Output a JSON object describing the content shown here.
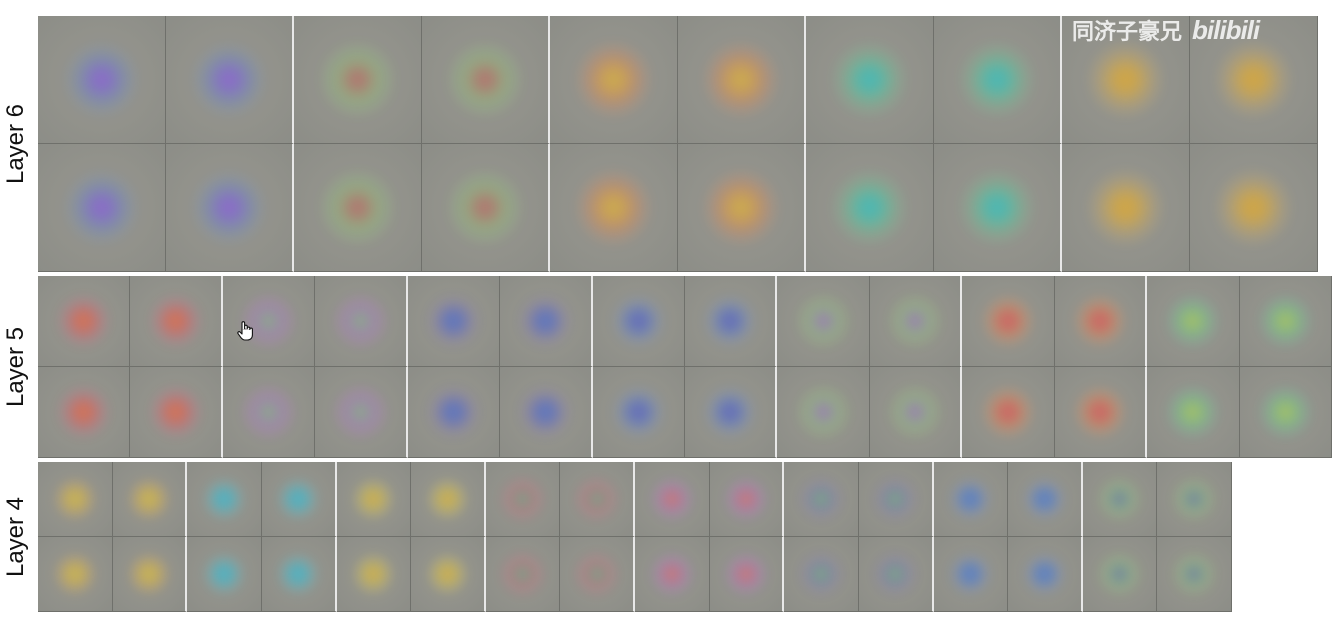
{
  "layers": [
    {
      "label": "Layer 6",
      "tiles_per_row": 10,
      "rows": 2
    },
    {
      "label": "Layer 5",
      "tiles_per_row": 14,
      "rows": 2
    },
    {
      "label": "Layer 4",
      "tiles_per_row": 16,
      "rows": 2
    }
  ],
  "watermark": {
    "text": "同济子豪兄",
    "logo_text": "bilibili"
  },
  "palette": [
    "#4a78c8",
    "#c84a6a",
    "#d4a63a",
    "#7bc86a",
    "#a15bd0",
    "#3ab3c8",
    "#e07a3a",
    "#5d5ab8",
    "#c8c04a",
    "#4ac88f"
  ]
}
